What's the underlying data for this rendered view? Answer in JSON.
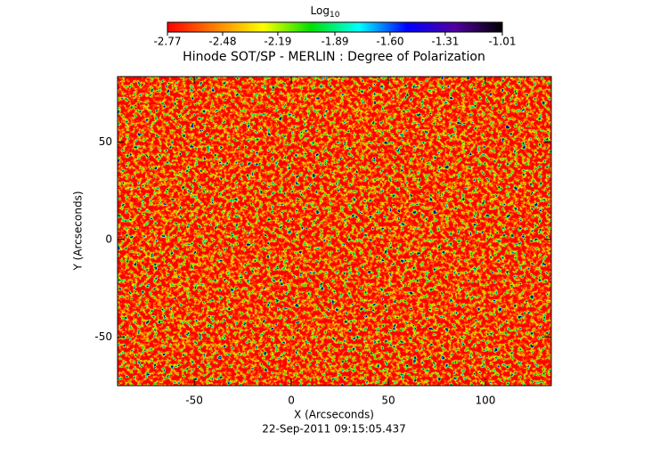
{
  "chart_data": {
    "type": "heatmap",
    "title": "Hinode SOT/SP - MERLIN : Degree of Polarization",
    "x_label": "X (Arcseconds)",
    "y_label": "Y (Arcseconds)",
    "footer": "22-Sep-2011 09:15:05.437",
    "xlim": [
      -89.5,
      134
    ],
    "ylim": [
      -75,
      83.5
    ],
    "xticks": [
      -50,
      0,
      50,
      100
    ],
    "yticks": [
      -50,
      0,
      50
    ],
    "colorbar": {
      "label": "Log",
      "label_sub": "10",
      "clim": [
        -2.77,
        -1.01
      ],
      "ticks": [
        -2.77,
        -2.48,
        -2.19,
        -1.89,
        {
          "value": -1.6,
          "label": "-1.60"
        },
        -1.31,
        -1.01
      ],
      "colormap": [
        "#ff0000",
        "#ff8000",
        "#ffff00",
        "#00e000",
        "#00ffff",
        "#0000ff",
        "#5000a0",
        "#000000"
      ]
    }
  }
}
